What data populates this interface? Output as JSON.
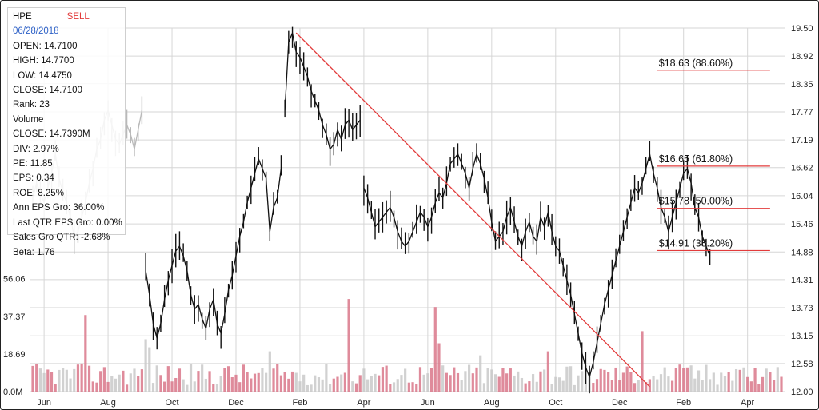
{
  "info_panel": {
    "symbol": "HPE",
    "signal": "SELL",
    "date": "06/28/2018",
    "rows": [
      "OPEN: 14.7100",
      "HIGH: 14.7700",
      "LOW: 14.4750",
      "CLOSE: 14.7100",
      "Rank: 23",
      "Volume",
      "CLOSE: 14.7390M",
      "DIV: 2.97%",
      "PE: 11.85",
      "EPS: 0.34",
      "ROE: 8.25%",
      "Ann EPS Gro: 36.00%",
      "Last QTR EPS Gro: 0.00%",
      "Sales Gro QTR: -2.68%",
      "Beta: 1.76"
    ]
  },
  "colors": {
    "price_line": "#111111",
    "trend_line": "#e23b3b",
    "fib_line": "#e23b3b",
    "volume_up": "#d9778a",
    "volume_down": "#c9c9c9",
    "grid": "#d6d6d6",
    "signal": "#e23b3b",
    "date": "#2f62c7"
  },
  "chart_data": {
    "type": "line",
    "price_axis": {
      "ticks": [
        19.5,
        18.92,
        18.35,
        17.77,
        17.19,
        16.62,
        16.04,
        15.46,
        14.88,
        14.31,
        13.73,
        13.15,
        12.58,
        12.0
      ],
      "tick_labels": [
        "19.50",
        "18.92",
        "18.35",
        "17.77",
        "17.19",
        "16.62",
        "16.04",
        "15.46",
        "14.88",
        "14.31",
        "13.73",
        "13.15",
        "12.58",
        "12.00"
      ],
      "ylim": [
        12.0,
        19.5
      ]
    },
    "volume_axis": {
      "tick_labels": [
        "56.06",
        "37.37",
        "18.69",
        "0.0M"
      ],
      "ylim": [
        0,
        75
      ]
    },
    "x_axis": {
      "tick_labels": [
        "Jun",
        "Aug",
        "Oct",
        "Dec",
        "Feb",
        "Apr",
        "Jun",
        "Aug",
        "Oct",
        "Dec",
        "Feb",
        "Apr"
      ],
      "tick_index": [
        3,
        20,
        37,
        54,
        71,
        88,
        105,
        122,
        139,
        156,
        173,
        190
      ]
    },
    "price_series": {
      "segments": [
        {
          "start": 0,
          "values": [
            16.0,
            16.3,
            16.1,
            15.9,
            16.2,
            16.5,
            16.9,
            16.4,
            16.1,
            15.9,
            15.6,
            15.2,
            15.3,
            15.6,
            15.9,
            16.3,
            16.6,
            17.0,
            17.2,
            17.6,
            17.8,
            17.5,
            17.2,
            17.1,
            17.3,
            17.5,
            17.3,
            17.0,
            17.4,
            17.8
          ]
        },
        {
          "start": 30,
          "values": [
            14.5,
            14.0,
            13.4,
            13.1,
            13.4,
            13.9,
            14.3,
            14.6,
            14.9,
            15.0,
            14.8,
            14.5,
            14.0,
            13.7,
            13.8,
            13.5,
            13.3,
            13.7,
            13.9,
            13.4,
            13.2,
            13.6,
            14.1,
            14.4,
            14.8,
            15.2,
            15.5,
            15.9,
            16.2,
            16.5,
            16.8,
            16.6,
            16.4,
            15.3,
            15.8,
            16.0,
            16.6
          ]
        },
        {
          "start": 67,
          "values": [
            17.8,
            19.2,
            19.4,
            19.0,
            18.9,
            18.7,
            18.5,
            18.2,
            18.0,
            17.8,
            17.5,
            17.3,
            17.0,
            17.1,
            17.4,
            17.2,
            17.5,
            17.6,
            17.4,
            17.5,
            17.6
          ]
        },
        {
          "start": 88,
          "values": [
            16.2,
            16.0,
            15.7,
            15.4,
            15.5,
            15.6,
            15.7,
            15.8,
            15.6,
            15.3,
            15.1,
            15.0,
            15.1,
            15.3,
            15.5,
            15.7,
            15.6,
            15.4,
            15.6,
            15.9,
            16.1,
            16.0,
            16.3,
            16.7,
            16.8,
            16.9,
            16.7,
            16.5,
            16.2,
            16.6,
            16.9,
            16.7,
            16.4,
            16.0,
            15.5,
            15.1,
            15.2,
            15.3,
            15.6,
            15.8,
            15.5,
            15.2,
            15.0,
            15.3,
            15.5,
            15.2,
            15.1,
            15.6,
            15.4,
            15.7,
            15.3,
            15.0,
            14.9,
            14.6,
            14.3,
            14.0,
            13.6,
            13.2,
            12.8,
            12.5,
            12.3,
            12.6,
            13.0,
            13.4,
            13.8,
            14.1,
            14.4,
            14.7,
            15.0,
            15.3,
            15.6,
            15.9,
            16.2,
            16.1,
            16.3,
            16.6,
            16.9,
            16.5,
            16.2,
            15.8,
            15.6,
            15.3,
            15.6,
            15.9,
            16.2,
            16.5,
            16.6,
            16.3,
            15.8,
            15.6,
            15.2,
            15.0,
            14.8
          ]
        }
      ]
    },
    "trend_line": {
      "from": {
        "i": 70,
        "price": 19.4
      },
      "to": {
        "i": 164,
        "price": 12.1
      }
    },
    "fibonacci": [
      {
        "label": "$18.63 (88.60%)",
        "price": 18.63,
        "from_i": 166,
        "to_i": 196
      },
      {
        "label": "$16.65 (61.80%)",
        "price": 16.65,
        "from_i": 166,
        "to_i": 196
      },
      {
        "label": "$15.78 (50.00%)",
        "price": 15.78,
        "from_i": 166,
        "to_i": 196
      },
      {
        "label": "$14.91 (38.20%)",
        "price": 14.91,
        "from_i": 166,
        "to_i": 196
      }
    ],
    "volume": {
      "spikes": [
        [
          14,
          38
        ],
        [
          30,
          26
        ],
        [
          31,
          22
        ],
        [
          63,
          20
        ],
        [
          84,
          46
        ],
        [
          107,
          42
        ],
        [
          108,
          24
        ],
        [
          119,
          18
        ],
        [
          137,
          20
        ],
        [
          162,
          30
        ],
        [
          175,
          13
        ],
        [
          189,
          12
        ]
      ]
    }
  }
}
